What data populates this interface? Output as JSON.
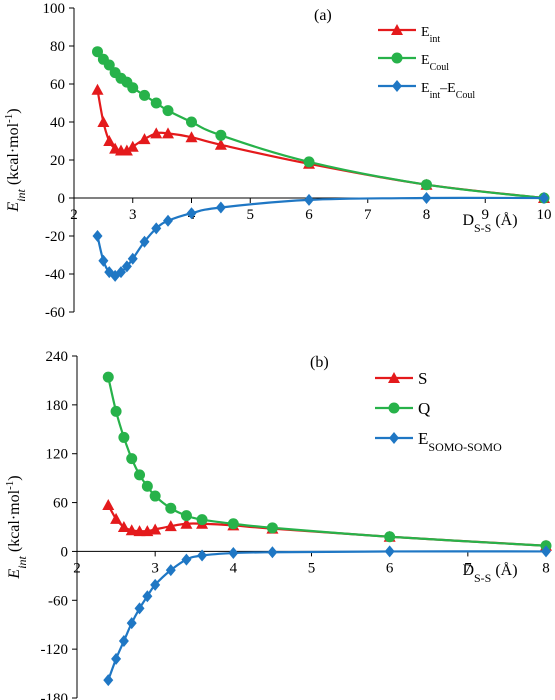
{
  "chart_data": [
    {
      "type": "line",
      "panel_label": "(a)",
      "ylabel": {
        "main": "E",
        "sub": "int",
        "unit_pre": " (kcal·mol",
        "unit_sup": "-1",
        "unit_post": ")"
      },
      "xlabel": {
        "main": "D",
        "sub": "S-S",
        "unit": " (Å)"
      },
      "xlim": [
        2,
        10
      ],
      "ylim": [
        -60,
        100
      ],
      "xticks": [
        2,
        3,
        4,
        5,
        6,
        7,
        8,
        9,
        10
      ],
      "yticks": [
        -60,
        -40,
        -20,
        0,
        20,
        40,
        60,
        80,
        100
      ],
      "legend_position": "top-right",
      "series": [
        {
          "legend": {
            "main": "E",
            "sub": "int",
            "tail": "",
            "tail_sub": ""
          },
          "color": "#e41a1c",
          "marker": "triangle",
          "x": [
            2.4,
            2.5,
            2.6,
            2.7,
            2.8,
            2.9,
            3.0,
            3.2,
            3.4,
            3.6,
            4.0,
            4.5,
            6.0,
            8.0,
            10.0
          ],
          "y": [
            57,
            40,
            30,
            26,
            25,
            25,
            27,
            31,
            34,
            34,
            32,
            28,
            18,
            7,
            0
          ]
        },
        {
          "legend": {
            "main": "E",
            "sub": "Coul",
            "tail": "",
            "tail_sub": ""
          },
          "color": "#27b24a",
          "marker": "circle",
          "x": [
            2.4,
            2.5,
            2.6,
            2.7,
            2.8,
            2.9,
            3.0,
            3.2,
            3.4,
            3.6,
            4.0,
            4.5,
            6.0,
            8.0,
            10.0
          ],
          "y": [
            77,
            73,
            70,
            66,
            63,
            61,
            58,
            54,
            50,
            46,
            40,
            33,
            19,
            7,
            0
          ]
        },
        {
          "legend": {
            "main": "E",
            "sub": "int",
            "tail": "–E",
            "tail_sub": "Coul"
          },
          "color": "#1f77c4",
          "marker": "diamond",
          "x": [
            2.4,
            2.5,
            2.6,
            2.7,
            2.8,
            2.9,
            3.0,
            3.2,
            3.4,
            3.6,
            4.0,
            4.5,
            6.0,
            8.0,
            10.0
          ],
          "y": [
            -20,
            -33,
            -39,
            -41,
            -39,
            -36,
            -32,
            -23,
            -16,
            -12,
            -8,
            -5,
            -1,
            0,
            0
          ]
        }
      ]
    },
    {
      "type": "line",
      "panel_label": "(b)",
      "ylabel": {
        "main": "E",
        "sub": "int",
        "unit_pre": " (kcal·mol",
        "unit_sup": "-1",
        "unit_post": ")"
      },
      "xlabel": {
        "main": "D",
        "sub": "S-S",
        "unit": " (Å)"
      },
      "xlim": [
        2,
        8
      ],
      "ylim": [
        -180,
        240
      ],
      "xticks": [
        2,
        3,
        4,
        5,
        6,
        7,
        8
      ],
      "yticks": [
        -180,
        -120,
        -60,
        0,
        60,
        120,
        180,
        240
      ],
      "legend_position": "top-right",
      "series": [
        {
          "legend": {
            "main": "S",
            "sub": "",
            "tail": "",
            "tail_sub": ""
          },
          "color": "#e41a1c",
          "marker": "triangle",
          "x": [
            2.4,
            2.5,
            2.6,
            2.7,
            2.8,
            2.9,
            3.0,
            3.2,
            3.4,
            3.6,
            4.0,
            4.5,
            6.0,
            8.0
          ],
          "y": [
            57,
            40,
            30,
            26,
            25,
            25,
            27,
            31,
            34,
            34,
            32,
            28,
            18,
            7
          ]
        },
        {
          "legend": {
            "main": "Q",
            "sub": "",
            "tail": "",
            "tail_sub": ""
          },
          "color": "#27b24a",
          "marker": "circle",
          "x": [
            2.4,
            2.5,
            2.6,
            2.7,
            2.8,
            2.9,
            3.0,
            3.2,
            3.4,
            3.6,
            4.0,
            4.5,
            6.0,
            8.0
          ],
          "y": [
            214,
            172,
            140,
            114,
            94,
            80,
            68,
            53,
            44,
            39,
            34,
            29,
            18,
            7
          ]
        },
        {
          "legend": {
            "main": "E",
            "sub": "SOMO-SOMO",
            "tail": "",
            "tail_sub": ""
          },
          "color": "#1f77c4",
          "marker": "diamond",
          "x": [
            2.4,
            2.5,
            2.6,
            2.7,
            2.8,
            2.9,
            3.0,
            3.2,
            3.4,
            3.6,
            4.0,
            4.5,
            6.0,
            8.0
          ],
          "y": [
            -158,
            -132,
            -110,
            -88,
            -70,
            -55,
            -41,
            -23,
            -10,
            -5,
            -2,
            -1,
            0,
            0
          ]
        }
      ]
    }
  ]
}
